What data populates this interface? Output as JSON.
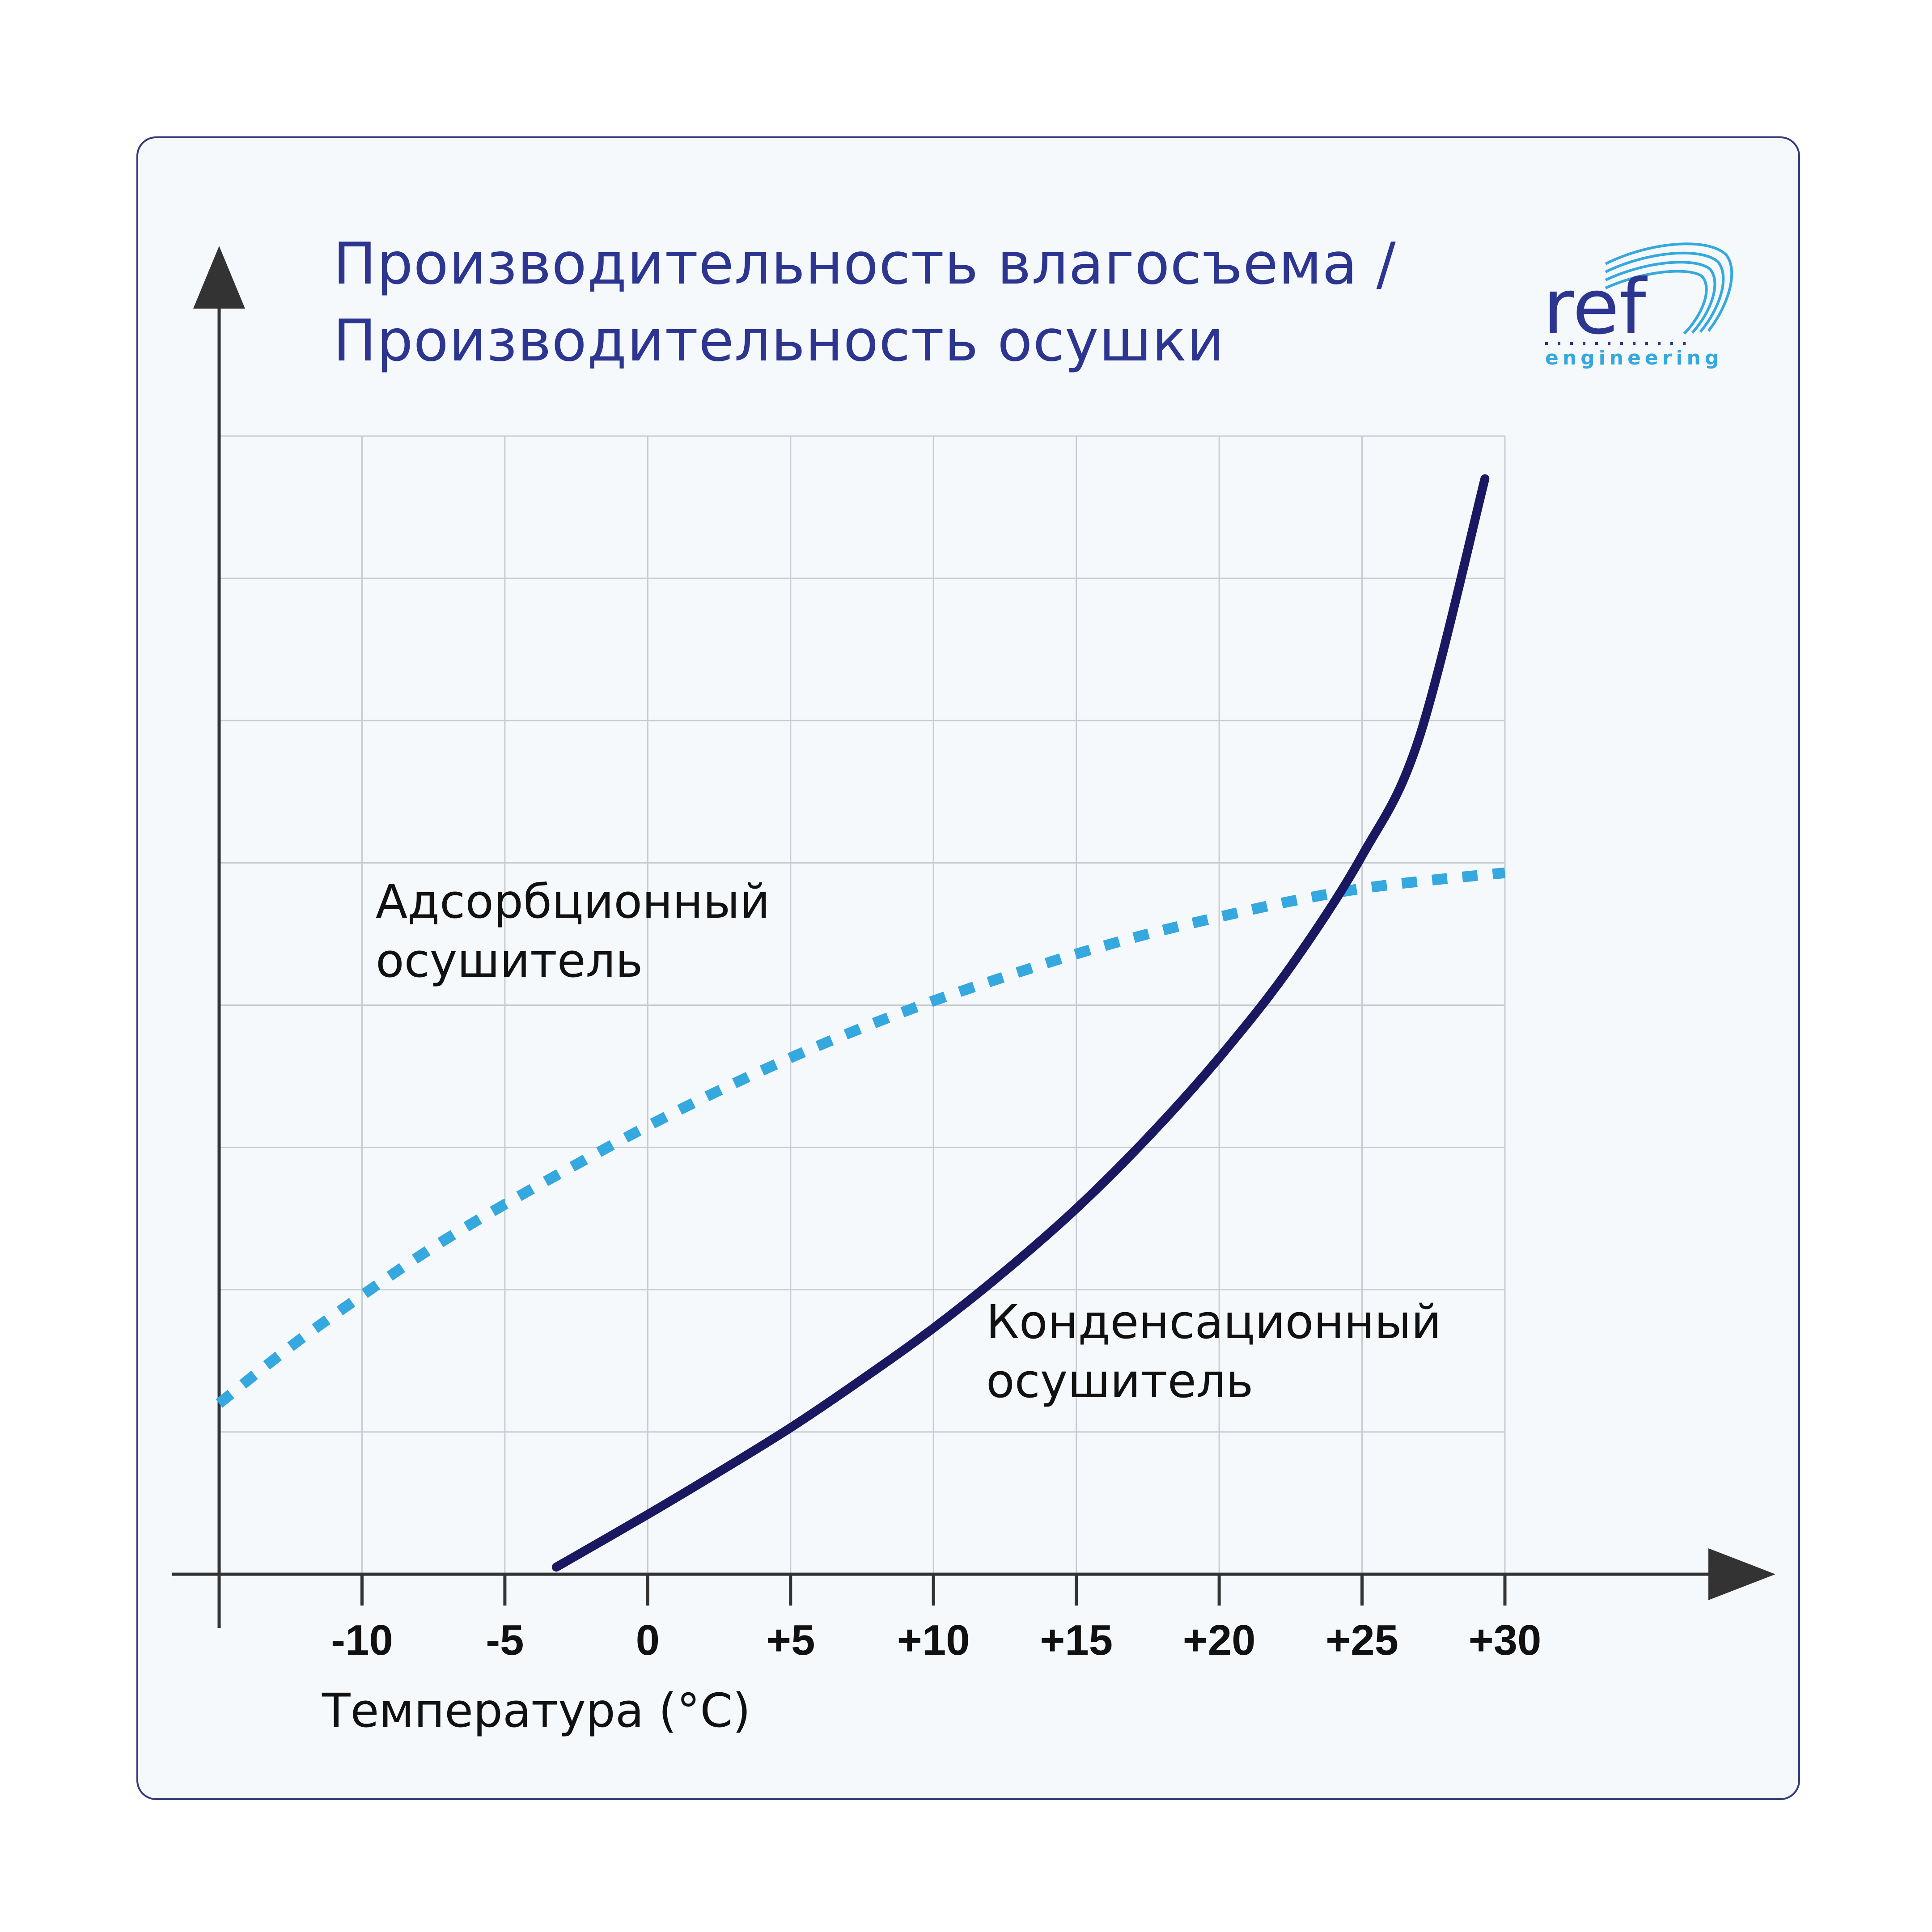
{
  "title_lines": [
    "Производительность влагосъема /",
    "Производительность осушки"
  ],
  "logo": {
    "word": "ref",
    "sub": "engineering"
  },
  "colors": {
    "adsorption": "#35a8df",
    "condensation": "#1a1860",
    "axis": "#333333",
    "grid": "#c8ccd2",
    "title": "#2c3590"
  },
  "chart_data": {
    "type": "line",
    "title": "Производительность влагосъема / Производительность осушки",
    "xlabel": "Температура (°C)",
    "ylabel": "",
    "xlim": [
      -15,
      30
    ],
    "ylim": [
      0,
      8
    ],
    "x_ticks": [
      -10,
      -5,
      0,
      5,
      10,
      15,
      20,
      25,
      30
    ],
    "x_tick_labels": [
      "-10",
      "-5",
      "0",
      "+5",
      "+10",
      "+15",
      "+20",
      "+25",
      "+30"
    ],
    "grid": true,
    "series": [
      {
        "name_lines": [
          "Адсорбционный",
          "осушитель"
        ],
        "style": "dashed",
        "x": [
          -15,
          -12.5,
          -10,
          -7.5,
          -5,
          -2.5,
          0,
          2.5,
          5,
          7.5,
          10,
          12.5,
          15,
          17.5,
          20,
          22.5,
          25,
          27.5,
          30
        ],
        "y": [
          1.2,
          1.6,
          1.96,
          2.3,
          2.6,
          2.88,
          3.15,
          3.4,
          3.63,
          3.84,
          4.03,
          4.2,
          4.36,
          4.5,
          4.62,
          4.73,
          4.82,
          4.88,
          4.93
        ]
      },
      {
        "name_lines": [
          "Конденсационный",
          "осушитель"
        ],
        "style": "solid",
        "x": [
          -3.2,
          0,
          2.5,
          5,
          7.5,
          10,
          12.5,
          15,
          17.5,
          20,
          22.5,
          25,
          27,
          29.3
        ],
        "y": [
          0.05,
          0.42,
          0.72,
          1.03,
          1.37,
          1.73,
          2.13,
          2.57,
          3.07,
          3.63,
          4.27,
          5.05,
          5.88,
          7.7
        ]
      }
    ]
  }
}
